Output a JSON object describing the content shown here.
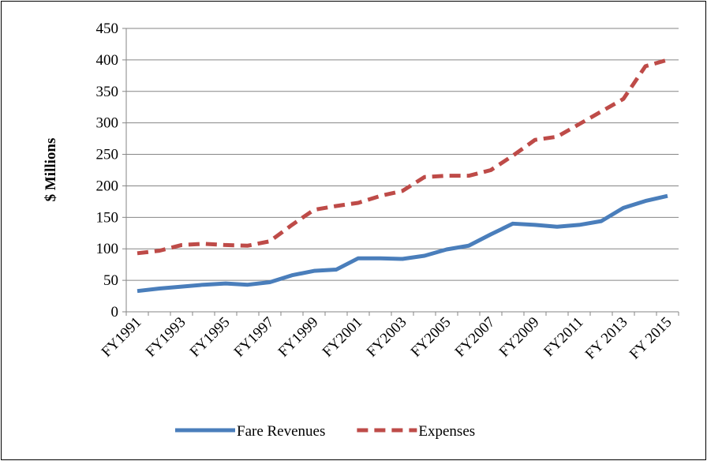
{
  "chart_data": {
    "type": "line",
    "y_label": "$ Millions",
    "categories": [
      "FY1991",
      null,
      "FY1993",
      null,
      "FY1995",
      null,
      "FY1997",
      null,
      "FY1999",
      null,
      "FY2001",
      null,
      "FY2003",
      null,
      "FY2005",
      null,
      "FY2007",
      null,
      "FY2009",
      null,
      "FY2011",
      null,
      "FY 2013",
      null,
      "FY 2015"
    ],
    "series": [
      {
        "name": "Fare Revenues",
        "color": "#4a7ebb",
        "dash": "solid",
        "values": [
          33,
          37,
          40,
          43,
          45,
          43,
          47,
          58,
          65,
          67,
          85,
          85,
          84,
          89,
          99,
          105,
          123,
          140,
          138,
          135,
          138,
          144,
          165,
          176,
          184
        ]
      },
      {
        "name": "Expenses",
        "color": "#be4b48",
        "dash": "dashed",
        "values": [
          93,
          97,
          106,
          108,
          106,
          105,
          112,
          138,
          162,
          168,
          173,
          184,
          192,
          214,
          216,
          216,
          225,
          248,
          273,
          278,
          298,
          318,
          338,
          390,
          400
        ]
      }
    ],
    "ylim": [
      0,
      450
    ],
    "yticks": [
      0,
      50,
      100,
      150,
      200,
      250,
      300,
      350,
      400,
      450
    ],
    "grid": true,
    "legend": "bottom"
  }
}
